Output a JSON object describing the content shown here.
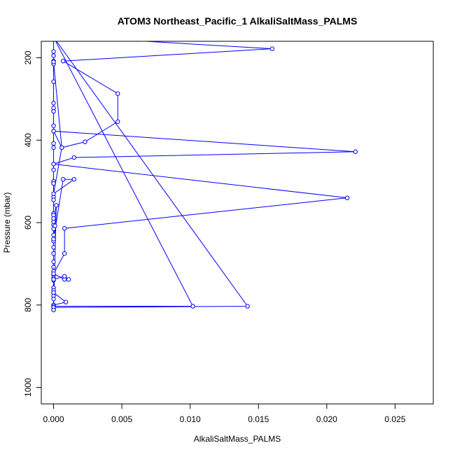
{
  "chart_data": {
    "type": "line",
    "title": "ATOM3 Northeast_Pacific_1 AlkaliSaltMass_PALMS",
    "xlabel": "AlkaliSaltMass_PALMS",
    "ylabel": "Pressure (mbar)",
    "xlim": [
      -0.0009,
      0.0278
    ],
    "ylim": [
      1040,
      160
    ],
    "y_reversed": true,
    "grid": false,
    "legend": "none",
    "x_ticks": [
      0.0,
      0.005,
      0.01,
      0.015,
      0.02,
      0.025
    ],
    "x_tick_labels": [
      "0.000",
      "0.005",
      "0.010",
      "0.015",
      "0.020",
      "0.025"
    ],
    "y_ticks": [
      200,
      400,
      600,
      800,
      1000
    ],
    "y_tick_labels": [
      "200",
      "400",
      "600",
      "800",
      "1000"
    ],
    "series": [
      {
        "color": "#0000ff",
        "marker": "open-circle",
        "points": [
          [
            0.0,
            150
          ],
          [
            0.0,
            185
          ],
          [
            0.0,
            195
          ],
          [
            0.0,
            208
          ],
          [
            0.0,
            215
          ],
          [
            0.0,
            258
          ],
          [
            0.0,
            310
          ],
          [
            0.0,
            322
          ],
          [
            0.0,
            330
          ],
          [
            0.0,
            365
          ],
          [
            0.0,
            378
          ],
          [
            0.0,
            408
          ],
          [
            0.0,
            418
          ],
          [
            0.0,
            458
          ],
          [
            0.0,
            472
          ],
          [
            0.0,
            500
          ],
          [
            0.0,
            505
          ],
          [
            0.0,
            538
          ],
          [
            0.0,
            545
          ],
          [
            0.0,
            578
          ],
          [
            0.0,
            582
          ],
          [
            0.0,
            598
          ],
          [
            0.0,
            606
          ],
          [
            0.0,
            615
          ],
          [
            0.0,
            630
          ],
          [
            0.0,
            645
          ],
          [
            0.0,
            660
          ],
          [
            0.0,
            675
          ],
          [
            0.0,
            695
          ],
          [
            0.0,
            708
          ],
          [
            0.0,
            718
          ],
          [
            0.0,
            728
          ],
          [
            0.0,
            735
          ],
          [
            0.0,
            740
          ],
          [
            0.0,
            758
          ],
          [
            0.0,
            765
          ],
          [
            0.0,
            778
          ],
          [
            0.0,
            785
          ],
          [
            0.0,
            800
          ],
          [
            0.0,
            806
          ],
          [
            0.0,
            812
          ],
          [
            0.0,
            150
          ],
          [
            0.0016,
            150
          ],
          [
            0.016,
            178
          ],
          [
            0.0007,
            208
          ],
          [
            0.0047,
            287
          ],
          [
            0.0047,
            355
          ],
          [
            0.0023,
            404
          ],
          [
            0.0006,
            418
          ],
          [
            0.0,
            378
          ],
          [
            0.0221,
            428
          ],
          [
            0.0015,
            442
          ],
          [
            0.0,
            458
          ],
          [
            0.0215,
            540
          ],
          [
            0.0008,
            614
          ],
          [
            0.0008,
            675
          ],
          [
            0.0,
            724
          ],
          [
            0.0008,
            738
          ],
          [
            0.0011,
            738
          ],
          [
            0.0008,
            730
          ],
          [
            0.0,
            738
          ],
          [
            0.0,
            770
          ],
          [
            0.0009,
            793
          ],
          [
            0.0,
            800
          ],
          [
            0.0,
            803
          ],
          [
            0.0102,
            803
          ],
          [
            0.0,
            150
          ],
          [
            0.0,
            806
          ],
          [
            0.0142,
            803
          ],
          [
            0.0,
            150
          ],
          [
            0.0,
            812
          ],
          [
            0.0002,
            558
          ],
          [
            0.0,
            590
          ],
          [
            0.0001,
            608
          ],
          [
            0.0,
            640
          ],
          [
            0.0007,
            495
          ],
          [
            0.0015,
            495
          ],
          [
            0.0,
            530
          ],
          [
            0.0006,
            418
          ],
          [
            0.0,
            210
          ],
          [
            0.0,
            150
          ]
        ]
      }
    ]
  }
}
